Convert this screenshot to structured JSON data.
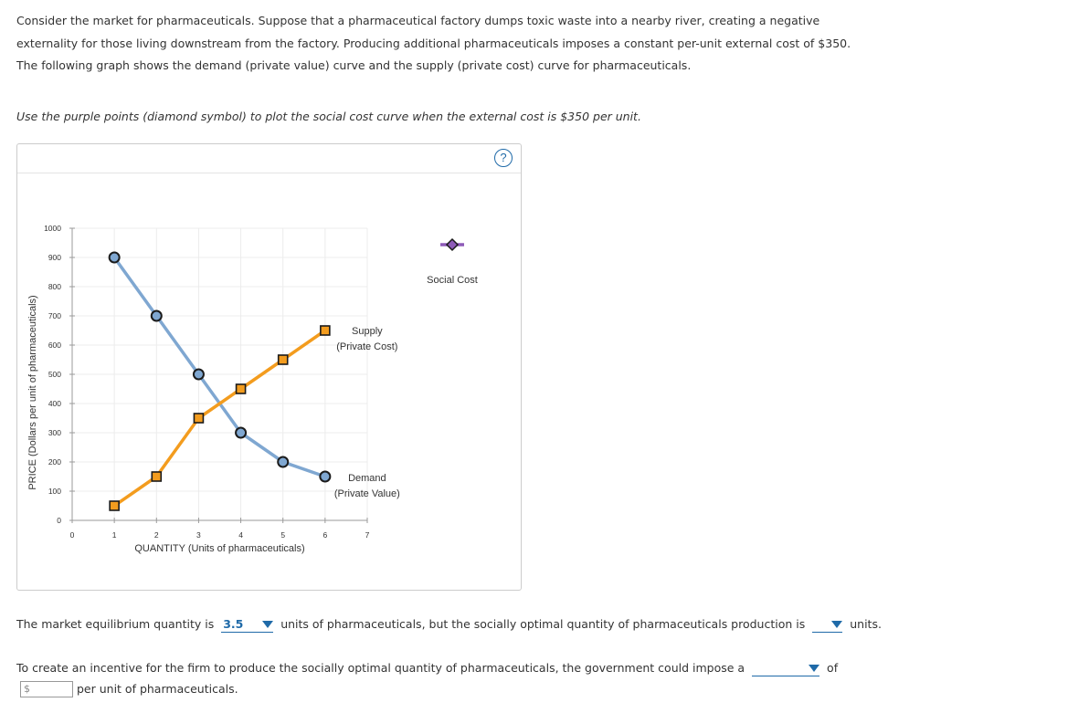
{
  "intro_text": "Consider the market for pharmaceuticals. Suppose that a pharmaceutical factory dumps toxic waste into a nearby river, creating a negative externality for those living downstream from the factory. Producing additional pharmaceuticals imposes a constant per-unit external cost of $350. The following graph shows the demand (private value) curve and the supply (private cost) curve for pharmaceuticals.",
  "instruction_text": "Use the purple points (diamond symbol) to plot the social cost curve when the external cost is $350 per unit.",
  "help_label": "?",
  "chart_data": {
    "type": "line",
    "xlabel": "QUANTITY (Units of pharmaceuticals)",
    "ylabel": "PRICE (Dollars per unit of pharmaceuticals)",
    "xlim": [
      0,
      7
    ],
    "ylim": [
      0,
      1000
    ],
    "xticks": [
      0,
      1,
      2,
      3,
      4,
      5,
      6,
      7
    ],
    "yticks": [
      0,
      100,
      200,
      300,
      400,
      500,
      600,
      700,
      800,
      900,
      1000
    ],
    "grid": true,
    "series": [
      {
        "name": "Demand",
        "label_line2": "(Private Value)",
        "color": "#7fa7d1",
        "marker": "circle",
        "marker_fill": "#7fa7d1",
        "points": [
          [
            1,
            900
          ],
          [
            2,
            700
          ],
          [
            3,
            500
          ],
          [
            4,
            300
          ],
          [
            5,
            200
          ],
          [
            6,
            150
          ]
        ]
      },
      {
        "name": "Supply",
        "label_line2": "(Private Cost)",
        "color": "#f39c1e",
        "marker": "square",
        "marker_fill": "#f39c1e",
        "points": [
          [
            1,
            50
          ],
          [
            2,
            150
          ],
          [
            3,
            350
          ],
          [
            4,
            450
          ],
          [
            5,
            550
          ],
          [
            6,
            650
          ]
        ]
      }
    ],
    "palette_tool": {
      "name": "Social Cost",
      "color": "#8e5bb8",
      "marker": "diamond"
    }
  },
  "question1": {
    "before": "The market equilibrium quantity is",
    "selected": "3.5",
    "middle": "units of pharmaceuticals, but the socially optimal quantity of pharmaceuticals production is",
    "selected2": "",
    "after": "units."
  },
  "question2": {
    "before": "To create an incentive for the firm to produce the socially optimal quantity of pharmaceuticals, the government could impose a",
    "selected": "",
    "after": "of"
  },
  "dollar_input": {
    "prefix": "$",
    "value": ""
  },
  "per_unit_text": "per unit of pharmaceuticals."
}
